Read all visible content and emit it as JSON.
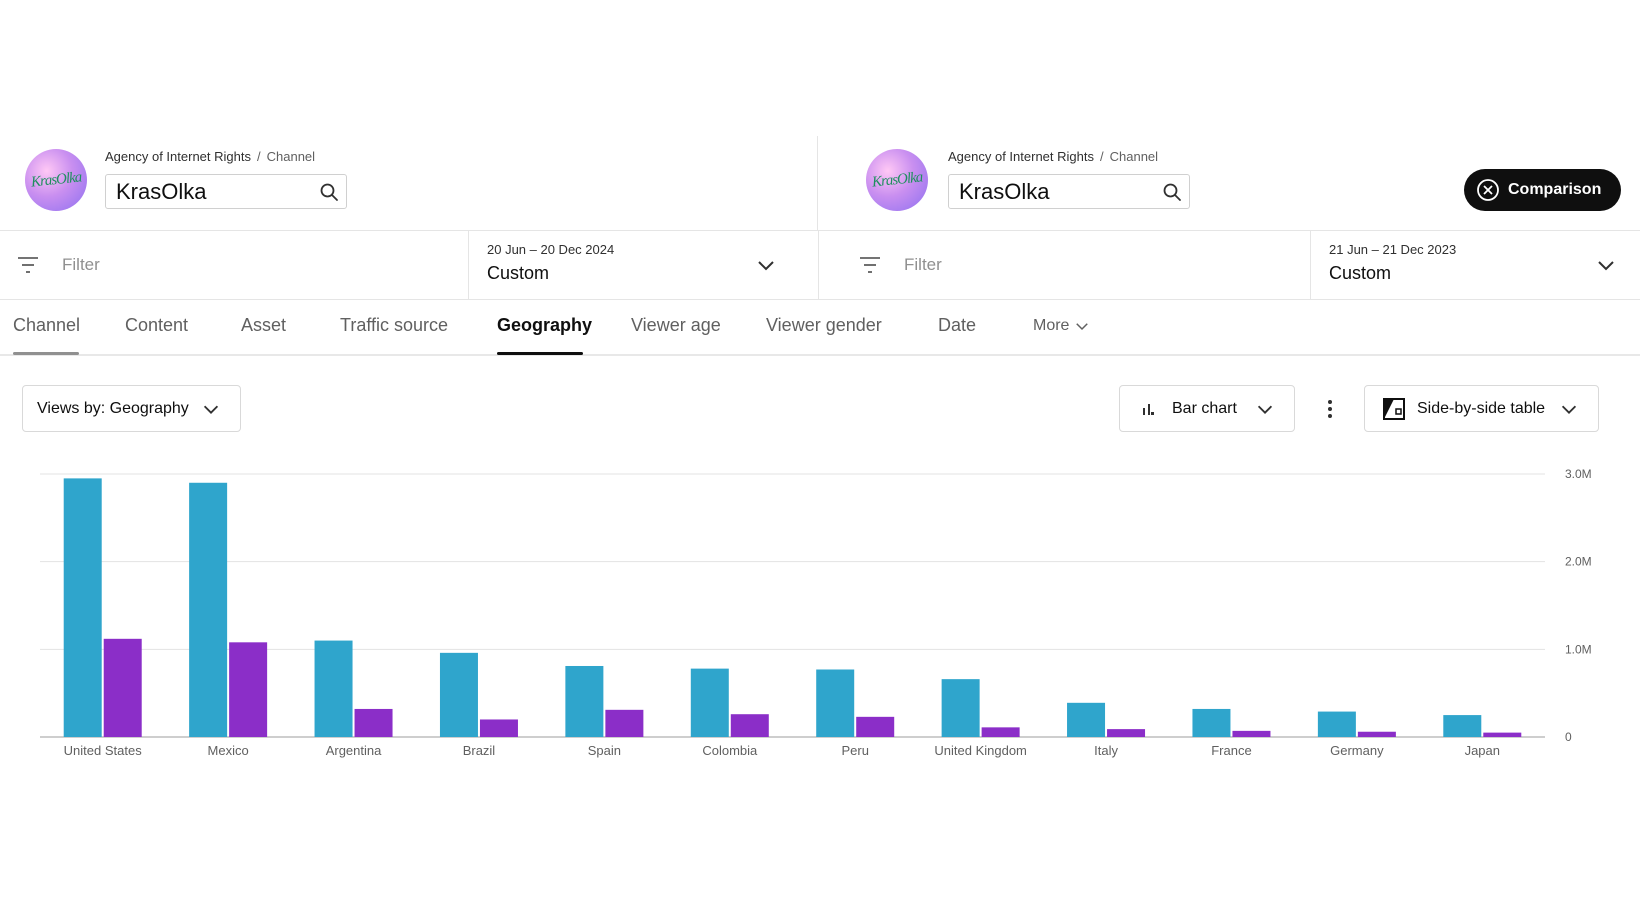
{
  "left_channel": {
    "avatar_text": "KrasOlka",
    "breadcrumb": {
      "owner": "Agency of Internet Rights",
      "separator": "/",
      "level": "Channel"
    },
    "channel_name": "KrasOlka",
    "filter_placeholder": "Filter",
    "date_range": "20 Jun – 20 Dec 2024",
    "date_preset": "Custom"
  },
  "right_channel": {
    "avatar_text": "KrasOlka",
    "breadcrumb": {
      "owner": "Agency of Internet Rights",
      "separator": "/",
      "level": "Channel"
    },
    "channel_name": "KrasOlka",
    "filter_placeholder": "Filter",
    "date_range": "21 Jun – 21 Dec 2023",
    "date_preset": "Custom"
  },
  "comparison_button": {
    "label": "Comparison"
  },
  "tabs": [
    {
      "label": "Channel"
    },
    {
      "label": "Content"
    },
    {
      "label": "Asset"
    },
    {
      "label": "Traffic source"
    },
    {
      "label": "Geography",
      "active": true
    },
    {
      "label": "Viewer age"
    },
    {
      "label": "Viewer gender"
    },
    {
      "label": "Date"
    },
    {
      "label": "More"
    }
  ],
  "controls": {
    "metric_select": "Views by: Geography",
    "chart_type_select": "Bar chart",
    "table_mode_select": "Side-by-side table"
  },
  "colors": {
    "series_current": "#2fa5cc",
    "series_previous": "#8b2ec8",
    "comparison_bg": "#0f0f0f",
    "active_tab_underline": "#0f0f0f",
    "inactive_tab_underline": "#606060"
  },
  "chart_data": {
    "type": "bar",
    "categories": [
      "United States",
      "Mexico",
      "Argentina",
      "Brazil",
      "Spain",
      "Colombia",
      "Peru",
      "United Kingdom",
      "Italy",
      "France",
      "Germany",
      "Japan"
    ],
    "series": [
      {
        "color": "#2fa5cc",
        "values": [
          2950000,
          2900000,
          1100000,
          960000,
          810000,
          780000,
          770000,
          660000,
          390000,
          320000,
          290000,
          250000
        ]
      },
      {
        "color": "#8b2ec8",
        "values": [
          1120000,
          1080000,
          320000,
          200000,
          310000,
          260000,
          230000,
          110000,
          90000,
          70000,
          60000,
          50000
        ]
      }
    ],
    "ylim": [
      0,
      3000000
    ],
    "yticks": [
      {
        "value": 3000000,
        "label": "3.0M"
      },
      {
        "value": 2000000,
        "label": "2.0M"
      },
      {
        "value": 1000000,
        "label": "1.0M"
      },
      {
        "value": 0,
        "label": "0"
      }
    ],
    "grid": true,
    "y_axis_side": "right"
  }
}
